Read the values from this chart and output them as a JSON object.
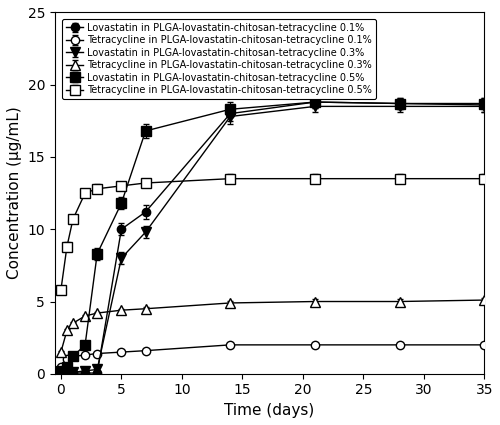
{
  "title": "",
  "xlabel": "Time (days)",
  "ylabel": "Concentration (μg/mL)",
  "xlim": [
    -0.5,
    35
  ],
  "ylim": [
    0,
    25
  ],
  "xticks": [
    0,
    5,
    10,
    15,
    20,
    25,
    30,
    35
  ],
  "yticks": [
    0,
    5,
    10,
    15,
    20,
    25
  ],
  "series": [
    {
      "label": "Lovastatin in PLGA-lovastatin-chitosan-tetracycline 0.1%",
      "x": [
        0,
        0.5,
        1,
        2,
        3,
        5,
        7,
        14,
        21,
        28,
        35
      ],
      "y": [
        0.05,
        0.05,
        0.05,
        0.05,
        0.05,
        10.0,
        11.2,
        18.0,
        18.8,
        18.7,
        18.6
      ],
      "yerr": [
        0.1,
        0.1,
        0.1,
        0.1,
        0.1,
        0.4,
        0.5,
        0.5,
        0.4,
        0.4,
        0.5
      ],
      "marker": "o",
      "fillstyle": "full",
      "markersize": 6
    },
    {
      "label": "Tetracycline in PLGA-lovastatin-chitosan-tetracycline 0.1%",
      "x": [
        0,
        0.5,
        1,
        2,
        3,
        5,
        7,
        14,
        21,
        28,
        35
      ],
      "y": [
        0.5,
        1.0,
        1.2,
        1.3,
        1.4,
        1.5,
        1.6,
        2.0,
        2.0,
        2.0,
        2.0
      ],
      "yerr": [
        0.05,
        0.05,
        0.05,
        0.05,
        0.05,
        0.05,
        0.05,
        0.1,
        0.1,
        0.1,
        0.1
      ],
      "marker": "o",
      "fillstyle": "none",
      "markersize": 6
    },
    {
      "label": "Lovastatin in PLGA-lovastatin-chitosan-tetracycline 0.3%",
      "x": [
        0,
        0.5,
        1,
        2,
        3,
        5,
        7,
        14,
        21,
        28,
        35
      ],
      "y": [
        0.1,
        0.1,
        0.1,
        0.2,
        0.3,
        8.0,
        9.8,
        17.8,
        18.5,
        18.5,
        18.5
      ],
      "yerr": [
        0.05,
        0.05,
        0.05,
        0.05,
        0.1,
        0.4,
        0.4,
        0.5,
        0.4,
        0.4,
        0.4
      ],
      "marker": "v",
      "fillstyle": "full",
      "markersize": 7
    },
    {
      "label": "Tetracycline in PLGA-lovastatin-chitosan-tetracycline 0.3%",
      "x": [
        0,
        0.5,
        1,
        2,
        3,
        5,
        7,
        14,
        21,
        28,
        35
      ],
      "y": [
        1.5,
        3.0,
        3.5,
        4.0,
        4.2,
        4.4,
        4.5,
        4.9,
        5.0,
        5.0,
        5.1
      ],
      "yerr": [
        0.1,
        0.1,
        0.1,
        0.1,
        0.1,
        0.1,
        0.1,
        0.15,
        0.15,
        0.15,
        0.15
      ],
      "marker": "^",
      "fillstyle": "none",
      "markersize": 7
    },
    {
      "label": "Lovastatin in PLGA-lovastatin-chitosan-tetracycline 0.5%",
      "x": [
        0,
        0.5,
        1,
        2,
        3,
        5,
        7,
        14,
        21,
        28,
        35
      ],
      "y": [
        0.2,
        0.5,
        1.2,
        2.0,
        8.3,
        11.8,
        16.8,
        18.3,
        18.8,
        18.7,
        18.7
      ],
      "yerr": [
        0.1,
        0.1,
        0.2,
        0.3,
        0.4,
        0.4,
        0.5,
        0.5,
        0.4,
        0.4,
        0.4
      ],
      "marker": "s",
      "fillstyle": "full",
      "markersize": 7
    },
    {
      "label": "Tetracycline in PLGA-lovastatin-chitosan-tetracycline 0.5%",
      "x": [
        0,
        0.5,
        1,
        2,
        3,
        5,
        7,
        14,
        21,
        28,
        35
      ],
      "y": [
        5.8,
        8.8,
        10.7,
        12.5,
        12.8,
        13.0,
        13.2,
        13.5,
        13.5,
        13.5,
        13.5
      ],
      "yerr": [
        0.2,
        0.3,
        0.3,
        0.3,
        0.3,
        0.3,
        0.3,
        0.3,
        0.3,
        0.3,
        0.3
      ],
      "marker": "s",
      "fillstyle": "none",
      "markersize": 7
    }
  ],
  "line_color": "#000000",
  "legend_fontsize": 7.0,
  "axis_label_fontsize": 11,
  "tick_fontsize": 10,
  "background_color": "#ffffff"
}
